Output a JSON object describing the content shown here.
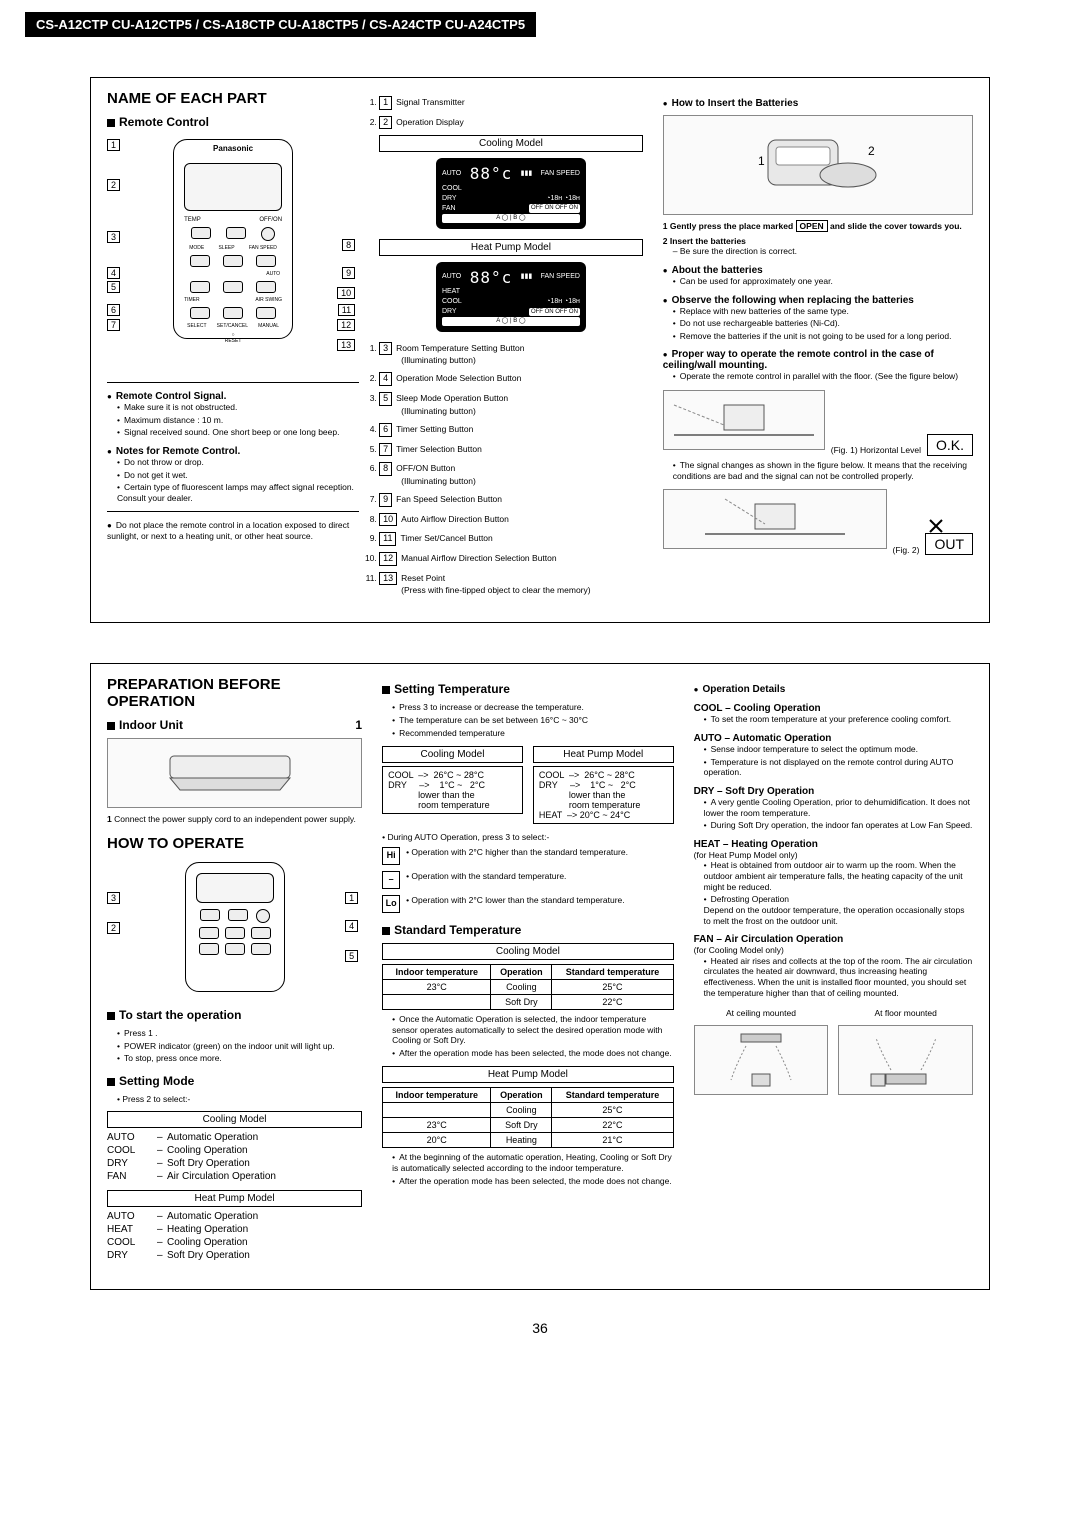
{
  "header": "CS-A12CTP CU-A12CTP5 / CS-A18CTP CU-A18CTP5 / CS-A24CTP CU-A24CTP5",
  "page_number": "36",
  "section1": {
    "title": "NAME OF EACH PART",
    "remote_control": "Remote Control",
    "brand": "Panasonic",
    "temp_label": "TEMP",
    "offon_label": "OFF/ON",
    "mode_label": "MODE",
    "sleep_label": "SLEEP",
    "fanspeed_label": "FAN SPEED",
    "auto_label": "AUTO",
    "timer_label": "TIMER",
    "airswing_label": "AIR SWING",
    "select_label": "SELECT",
    "setcancel_label": "SET/CANCEL",
    "manual_label": "MANUAL",
    "reset_label": "RESET",
    "signal_title": "Remote Control Signal.",
    "signal_items": [
      "Make sure it is not obstructed.",
      "Maximum distance : 10 m.",
      "Signal received sound.\nOne short beep or one long beep."
    ],
    "notes_title": "Notes for Remote Control.",
    "notes_items": [
      "Do not throw or drop.",
      "Do not get it wet.",
      "Certain type of fluorescent lamps may affect signal reception. Consult your dealer."
    ],
    "placement_note": "Do not place the remote control in a location exposed to direct sunlight, or next to a heating unit, or other heat  source.",
    "cooling_model": "Cooling Model",
    "heat_pump_model": "Heat Pump Model",
    "lcd_labels": {
      "auto": "AUTO",
      "heat": "HEAT",
      "cool": "COOL",
      "dry": "DRY",
      "fan": "FAN",
      "fanspeed": "FAN SPEED",
      "strip": "A ◯ | B ◯",
      "strip2": "OFF  ON OFF  ON"
    },
    "legend": [
      {
        "n": "1",
        "t": "Signal Transmitter"
      },
      {
        "n": "2",
        "t": "Operation Display"
      },
      {
        "n": "3",
        "t": "Room Temperature Setting Button",
        "sub": "(Illuminating button)"
      },
      {
        "n": "4",
        "t": "Operation Mode Selection Button"
      },
      {
        "n": "5",
        "t": "Sleep Mode Operation Button",
        "sub": "(Illuminating button)"
      },
      {
        "n": "6",
        "t": "Timer Setting Button"
      },
      {
        "n": "7",
        "t": "Timer Selection Button"
      },
      {
        "n": "8",
        "t": "OFF/ON Button",
        "sub": "(Illuminating button)"
      },
      {
        "n": "9",
        "t": "Fan Speed Selection Button"
      },
      {
        "n": "10",
        "t": "Auto Airflow Direction Button"
      },
      {
        "n": "11",
        "t": "Timer Set/Cancel Button"
      },
      {
        "n": "12",
        "t": "Manual Airflow Direction Selection Button"
      },
      {
        "n": "13",
        "t": "Reset Point",
        "sub": "(Press with fine-tipped object to clear the memory)"
      }
    ],
    "batteries_title": "How  to Insert the Batteries",
    "bat_step1_pre": "Gently press the place marked",
    "bat_step1_open": "OPEN",
    "bat_step1_post": "and slide the cover towards you.",
    "bat_step2": "Insert the batteries",
    "bat_step2_sub": "– Be sure the direction is correct.",
    "about_bat_title": "About the batteries",
    "about_bat_item": "Can be used for approximately one year.",
    "observe_title": "Observe the following when replacing the batteries",
    "observe_items": [
      "Replace with new batteries of the same type.",
      "Do not use rechargeable batteries (Ni-Cd).",
      "Remove the batteries if the unit is not going to be used for a long period."
    ],
    "proper_title": "Proper way to operate the remote control in the case of ceiling/wall mounting.",
    "proper_item": "Operate the remote control in parallel with the floor. (See the figure below)",
    "fig1": "(Fig. 1) Horizontal Level",
    "ok": "O.K.",
    "signal_change": "The signal changes as shown in the figure below. It means that the receiving conditions are bad and the signal can not be controlled properly.",
    "fig2": "(Fig. 2)",
    "out": "OUT"
  },
  "section2": {
    "title": "PREPARATION BEFORE OPERATION",
    "indoor_unit": "Indoor Unit",
    "connect": "Connect the power supply cord to an independent power supply.",
    "howto": "HOW TO OPERATE",
    "start_title": "To start the operation",
    "start_items": [
      "Press 1 .",
      "POWER indicator (green) on the indoor unit will light up.",
      "To stop, press once more."
    ],
    "setting_mode_title": "Setting Mode",
    "setting_mode_sub": "Press 2 to select:-",
    "cooling_model": "Cooling Model",
    "heat_pump_model": "Heat Pump Model",
    "cool_ops": [
      {
        "k": "AUTO",
        "d": "Automatic Operation"
      },
      {
        "k": "COOL",
        "d": "Cooling Operation"
      },
      {
        "k": "DRY",
        "d": "Soft Dry Operation"
      },
      {
        "k": "FAN",
        "d": "Air Circulation Operation"
      }
    ],
    "heat_ops": [
      {
        "k": "AUTO",
        "d": "Automatic Operation"
      },
      {
        "k": "HEAT",
        "d": "Heating Operation"
      },
      {
        "k": "COOL",
        "d": "Cooling Operation"
      },
      {
        "k": "DRY",
        "d": "Soft Dry Operation"
      }
    ],
    "setting_temp_title": "Setting Temperature",
    "setting_temp_items": [
      "Press 3 to increase or decrease the temperature.",
      "The temperature can be set between 16°C ~ 30°C",
      "Recommended temperature"
    ],
    "temp_table_cool": [
      "COOL  –>  26°C ~ 28°C",
      "DRY     –>    1°C ~   2°C",
      "            lower than the",
      "            room temperature"
    ],
    "temp_table_heat": [
      "COOL  –>  26°C ~ 28°C",
      "DRY     –>    1°C ~   2°C",
      "            lower than the",
      "            room temperature",
      "HEAT  –> 20°C ~ 24°C"
    ],
    "during_auto": "During AUTO Operation, press 3 to select:-",
    "auto_sel": [
      {
        "icon": "Hi",
        "t": "Operation with 2°C higher than the standard temperature."
      },
      {
        "icon": "–",
        "t": "Operation with the standard temperature."
      },
      {
        "icon": "Lo",
        "t": "Operation with 2°C lower than the standard temperature."
      }
    ],
    "std_temp_title": "Standard Temperature",
    "std_table_cool": {
      "cols": [
        "Indoor temperature",
        "Operation",
        "Standard temperature"
      ],
      "rows": [
        [
          "23°C",
          "Cooling",
          "25°C"
        ],
        [
          "",
          "Soft Dry",
          "22°C"
        ]
      ]
    },
    "std_note_cool": [
      "Once the Automatic Operation is selected, the indoor temperature sensor operates automatically to select the desired operation mode with Cooling or Soft Dry.",
      "After the operation mode has been selected, the mode does not change."
    ],
    "std_table_heat": {
      "cols": [
        "Indoor temperature",
        "Operation",
        "Standard temperature"
      ],
      "rows": [
        [
          "",
          "Cooling",
          "25°C"
        ],
        [
          "23°C",
          "Soft Dry",
          "22°C"
        ],
        [
          "20°C",
          "Heating",
          "21°C"
        ]
      ]
    },
    "std_note_heat": [
      "At the beginning of the automatic operation, Heating, Cooling or Soft Dry is automatically selected according to the indoor temperature.",
      "After the operation mode has been selected, the mode does not change."
    ],
    "op_details_title": "Operation Details",
    "ops": [
      {
        "h": "COOL – Cooling Operation",
        "items": [
          "To set the room temperature at your preference cooling comfort."
        ]
      },
      {
        "h": "AUTO – Automatic Operation",
        "items": [
          "Sense indoor temperature to select the optimum mode.",
          "Temperature is not displayed on the remote control during AUTO operation."
        ]
      },
      {
        "h": "DRY – Soft Dry Operation",
        "items": [
          "A very gentle Cooling Operation, prior to dehumidification. It does not lower the room temperature.",
          "During Soft Dry operation, the indoor fan operates at Low Fan Speed."
        ]
      },
      {
        "h": "HEAT – Heating Operation",
        "pre": "(for Heat Pump Model only)",
        "items": [
          "Heat is obtained from outdoor air to warm up the room. When the outdoor ambient air temperature falls, the heating capacity of the unit might be reduced.",
          "Defrosting Operation\nDepend on the outdoor temperature, the operation occasionally stops to melt the frost on the outdoor unit."
        ]
      },
      {
        "h": "FAN – Air Circulation Operation",
        "pre": "(for Cooling Model only)",
        "items": [
          "Heated air rises and collects at the top of the room. The air circulation circulates the heated air downward, thus increasing heating effectiveness. When the unit is installed floor mounted, you should set the temperature higher than that of ceiling mounted."
        ]
      }
    ],
    "mount_ceiling": "At ceiling mounted",
    "mount_floor": "At floor mounted"
  }
}
